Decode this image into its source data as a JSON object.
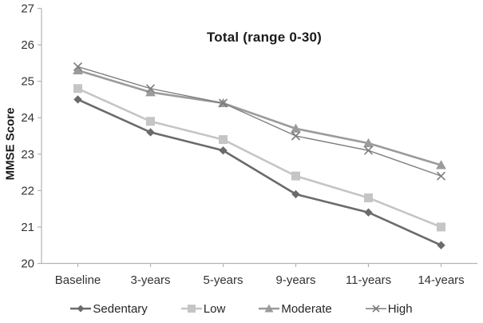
{
  "chart_data": {
    "type": "line",
    "title": "Total (range 0-30)",
    "ylabel": "MMSE Score",
    "xlabel": "",
    "categories": [
      "Baseline",
      "3-years",
      "5-years",
      "9-years",
      "11-years",
      "14-years"
    ],
    "series": [
      {
        "name": "Sedentary",
        "marker": "diamond",
        "color": "#6b6b6b",
        "line_width": 2.6,
        "values": [
          24.5,
          23.6,
          23.1,
          21.9,
          21.4,
          20.5
        ]
      },
      {
        "name": "Low",
        "marker": "square",
        "color": "#c5c5c5",
        "line_width": 2.6,
        "values": [
          24.8,
          23.9,
          23.4,
          22.4,
          21.8,
          21.0
        ]
      },
      {
        "name": "Moderate",
        "marker": "triangle",
        "color": "#9b9b9b",
        "line_width": 2.6,
        "values": [
          25.3,
          24.7,
          24.4,
          23.7,
          23.3,
          22.7
        ]
      },
      {
        "name": "High",
        "marker": "x",
        "color": "#7d7d7d",
        "line_width": 1.4,
        "values": [
          25.4,
          24.8,
          24.4,
          23.5,
          23.1,
          22.4
        ]
      }
    ],
    "ylim": [
      20,
      27
    ],
    "ytick_step": 1,
    "yticks": [
      20,
      21,
      22,
      23,
      24,
      25,
      26,
      27
    ],
    "grid": false,
    "legend_position": "bottom",
    "axis_color": "#b3b3b3",
    "tick_text_color": "#333333"
  }
}
